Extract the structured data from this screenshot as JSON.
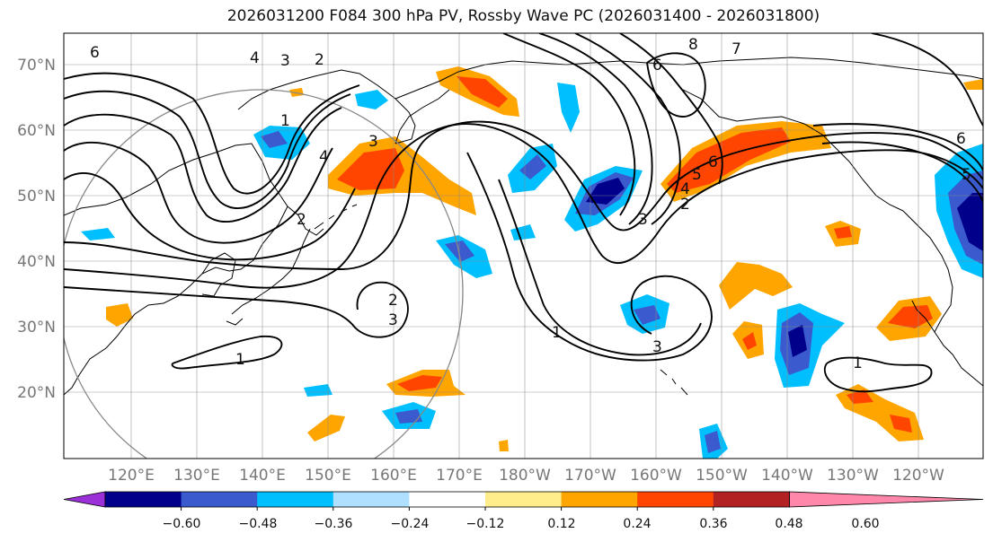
{
  "title": "2026031200 F084 300 hPa PV, Rossby Wave PC (2026031400 - 2026031800)",
  "lat_labels": [
    "70°N",
    "60°N",
    "50°N",
    "40°N",
    "30°N",
    "20°N"
  ],
  "lon_labels": [
    "120°E",
    "130°E",
    "140°E",
    "150°E",
    "160°E",
    "170°E",
    "180°W",
    "170°W",
    "160°W",
    "150°W",
    "140°W",
    "130°W",
    "120°W"
  ],
  "colorbar": {
    "colors": [
      "#9b30d8",
      "#00008b",
      "#3a5acd",
      "#00bfff",
      "#b0e0ff",
      "#ffffff",
      "#ffec8b",
      "#ffa500",
      "#ff4500",
      "#b22222",
      "#ff88aa"
    ],
    "labels": [
      "−0.60",
      "−0.48",
      "−0.36",
      "−0.24",
      "−0.12",
      "0.12",
      "0.24",
      "0.36",
      "0.48",
      "0.60"
    ]
  },
  "contour_labels": [
    "6",
    "4",
    "3",
    "2",
    "1",
    "4",
    "2",
    "3",
    "1",
    "6",
    "8",
    "7",
    "6",
    "5",
    "4",
    "3",
    "2",
    "3",
    "1",
    "6",
    "5",
    "1",
    "2",
    "3"
  ],
  "colors": {
    "neg_deep": "#00008b",
    "neg_mid": "#3a5acd",
    "neg_light": "#00bfff",
    "pos_light": "#ffa500",
    "pos_mid": "#ff4500",
    "pos_pale": "#ffec8b",
    "grid": "#888888",
    "coast": "#000000"
  }
}
